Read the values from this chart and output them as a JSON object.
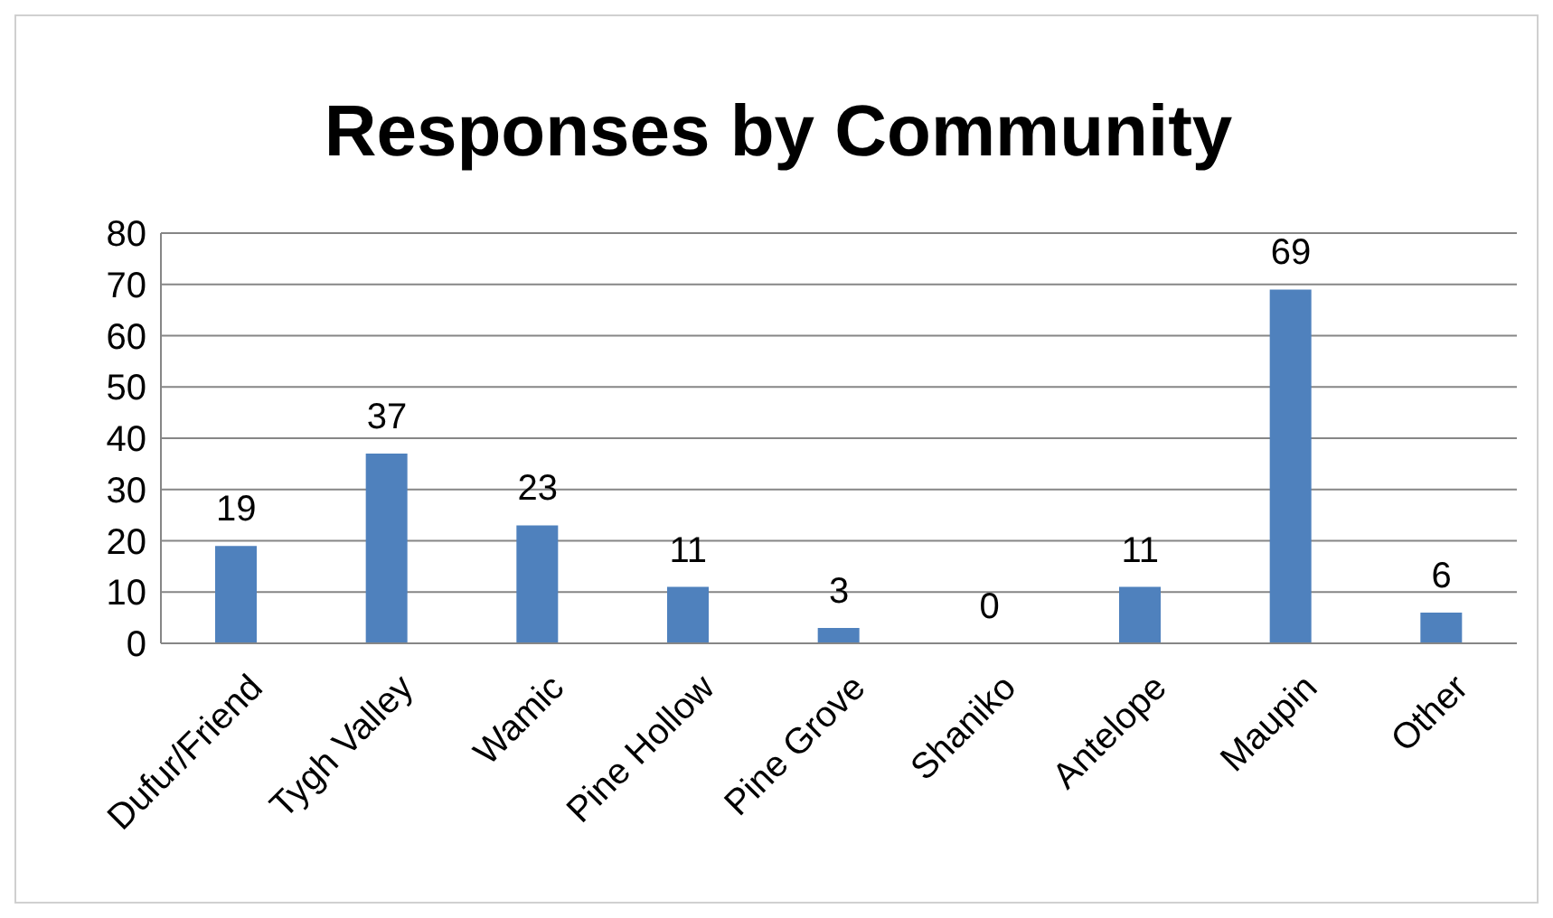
{
  "chart_data": {
    "type": "bar",
    "title": "Responses by Community",
    "categories": [
      "Dufur/Friend",
      "Tygh Valley",
      "Wamic",
      "Pine Hollow",
      "Pine Grove",
      "Shaniko",
      "Antelope",
      "Maupin",
      "Other"
    ],
    "values": [
      19,
      37,
      23,
      11,
      3,
      0,
      11,
      69,
      6
    ],
    "color": "#4f81bd",
    "ylim": [
      0,
      80
    ],
    "yticks": [
      0,
      10,
      20,
      30,
      40,
      50,
      60,
      70,
      80
    ],
    "grid": "y",
    "data_labels": true
  }
}
